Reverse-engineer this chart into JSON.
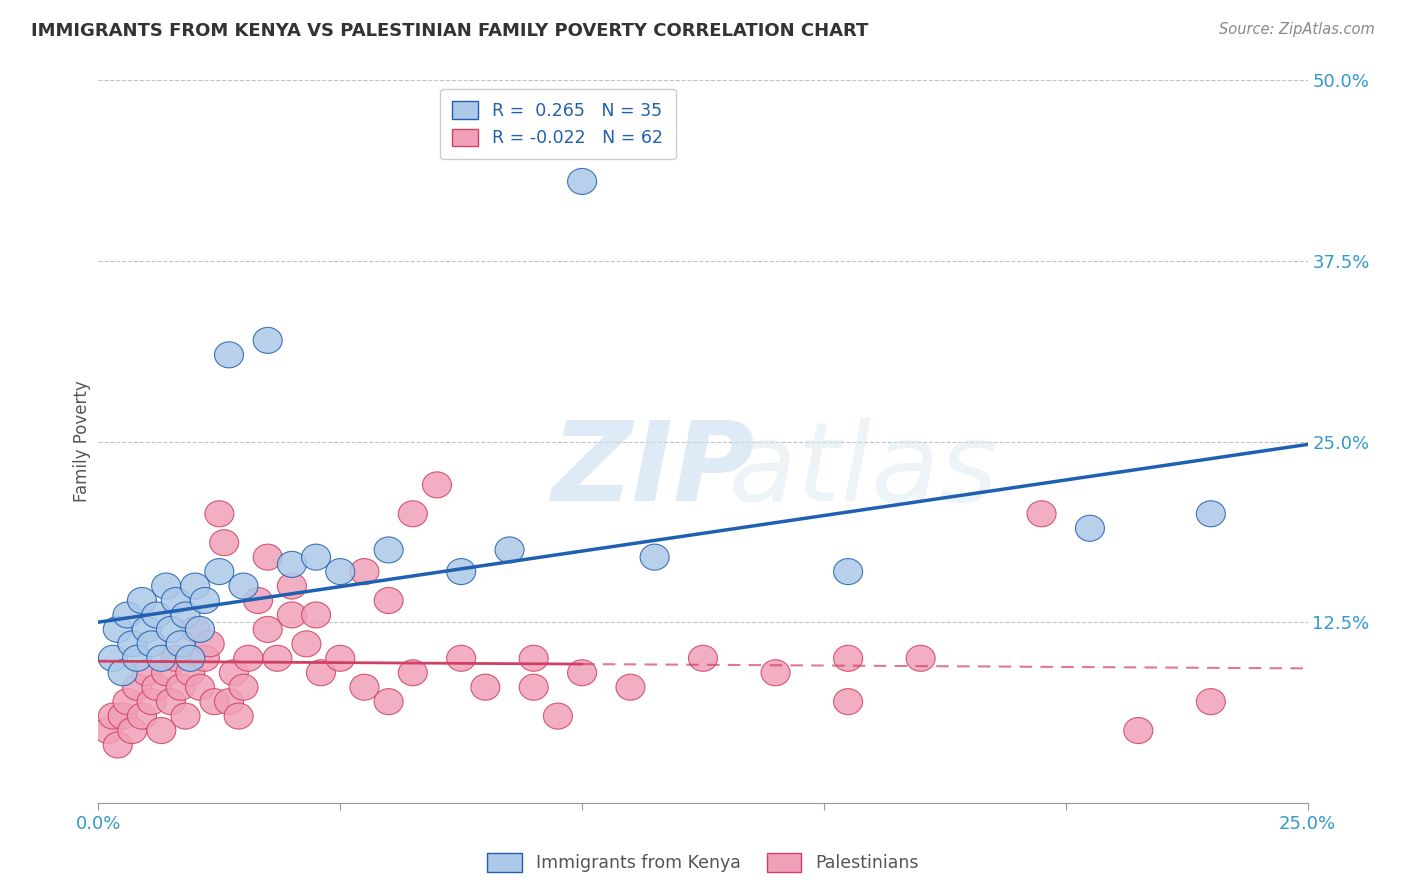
{
  "title": "IMMIGRANTS FROM KENYA VS PALESTINIAN FAMILY POVERTY CORRELATION CHART",
  "source": "Source: ZipAtlas.com",
  "ylabel": "Family Poverty",
  "legend_labels": [
    "Immigrants from Kenya",
    "Palestinians"
  ],
  "kenya_R": 0.265,
  "kenya_N": 35,
  "pal_R": -0.022,
  "pal_N": 62,
  "xlim": [
    0.0,
    0.25
  ],
  "ylim": [
    0.0,
    0.5
  ],
  "xticks": [
    0.0,
    0.05,
    0.1,
    0.15,
    0.2,
    0.25
  ],
  "yticks": [
    0.0,
    0.125,
    0.25,
    0.375,
    0.5
  ],
  "ytick_labels_right": [
    "",
    "12.5%",
    "25.0%",
    "37.5%",
    "50.0%"
  ],
  "xtick_labels": [
    "0.0%",
    "",
    "",
    "",
    "",
    "25.0%"
  ],
  "color_kenya": "#adc8e8",
  "color_pal": "#f0a0b8",
  "line_color_kenya": "#2060b0",
  "line_color_pal": "#d04060",
  "background_color": "#ffffff",
  "grid_color": "#bbbbcc",
  "kenya_line_y0": 0.125,
  "kenya_line_y1": 0.248,
  "pal_line_y0": 0.098,
  "pal_line_y1": 0.093,
  "kenya_points_x": [
    0.003,
    0.004,
    0.005,
    0.006,
    0.007,
    0.008,
    0.009,
    0.01,
    0.011,
    0.012,
    0.013,
    0.014,
    0.015,
    0.016,
    0.017,
    0.018,
    0.019,
    0.02,
    0.021,
    0.022,
    0.025,
    0.027,
    0.03,
    0.035,
    0.04,
    0.045,
    0.05,
    0.06,
    0.075,
    0.085,
    0.1,
    0.115,
    0.155,
    0.205,
    0.23
  ],
  "kenya_points_y": [
    0.1,
    0.12,
    0.09,
    0.13,
    0.11,
    0.1,
    0.14,
    0.12,
    0.11,
    0.13,
    0.1,
    0.15,
    0.12,
    0.14,
    0.11,
    0.13,
    0.1,
    0.15,
    0.12,
    0.14,
    0.16,
    0.31,
    0.15,
    0.32,
    0.165,
    0.17,
    0.16,
    0.175,
    0.16,
    0.175,
    0.43,
    0.17,
    0.16,
    0.19,
    0.2
  ],
  "pal_points_x": [
    0.002,
    0.003,
    0.004,
    0.005,
    0.006,
    0.007,
    0.008,
    0.009,
    0.01,
    0.011,
    0.012,
    0.013,
    0.014,
    0.015,
    0.016,
    0.017,
    0.018,
    0.019,
    0.02,
    0.021,
    0.022,
    0.023,
    0.024,
    0.025,
    0.026,
    0.027,
    0.028,
    0.029,
    0.03,
    0.031,
    0.033,
    0.035,
    0.037,
    0.04,
    0.043,
    0.046,
    0.05,
    0.055,
    0.06,
    0.065,
    0.07,
    0.075,
    0.08,
    0.09,
    0.1,
    0.11,
    0.125,
    0.14,
    0.155,
    0.17,
    0.035,
    0.04,
    0.045,
    0.055,
    0.06,
    0.065,
    0.09,
    0.095,
    0.155,
    0.195,
    0.215,
    0.23
  ],
  "pal_points_y": [
    0.05,
    0.06,
    0.04,
    0.06,
    0.07,
    0.05,
    0.08,
    0.06,
    0.09,
    0.07,
    0.08,
    0.05,
    0.09,
    0.07,
    0.1,
    0.08,
    0.06,
    0.09,
    0.12,
    0.08,
    0.1,
    0.11,
    0.07,
    0.2,
    0.18,
    0.07,
    0.09,
    0.06,
    0.08,
    0.1,
    0.14,
    0.12,
    0.1,
    0.13,
    0.11,
    0.09,
    0.1,
    0.08,
    0.07,
    0.09,
    0.22,
    0.1,
    0.08,
    0.1,
    0.09,
    0.08,
    0.1,
    0.09,
    0.1,
    0.1,
    0.17,
    0.15,
    0.13,
    0.16,
    0.14,
    0.2,
    0.08,
    0.06,
    0.07,
    0.2,
    0.05,
    0.07
  ]
}
